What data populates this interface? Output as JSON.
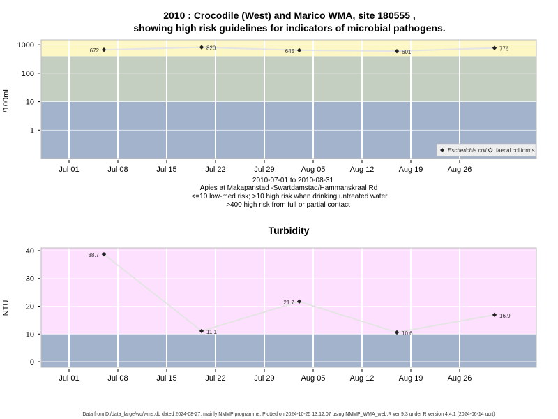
{
  "chart_data": [
    {
      "type": "line",
      "title_lines": [
        "2010 : Crocodile (West) and Marico WMA, site 180555 ,",
        "showing high risk guidelines for indicators of microbial pathogens."
      ],
      "ylabel": "/100mL",
      "yscale": "log",
      "ylim": [
        0.1,
        1500
      ],
      "yticks": [
        1,
        10,
        100,
        1000
      ],
      "ytick_labels": [
        "1",
        "10",
        "100",
        "1000"
      ],
      "xlim": [
        "2010-06-27",
        "2010-09-06"
      ],
      "xticks": [
        "2010-07-01",
        "2010-07-08",
        "2010-07-15",
        "2010-07-22",
        "2010-07-29",
        "2010-08-05",
        "2010-08-12",
        "2010-08-19",
        "2010-08-26"
      ],
      "xtick_labels": [
        "Jul 01",
        "Jul 08",
        "Jul 15",
        "Jul 22",
        "Jul 29",
        "Aug 05",
        "Aug 12",
        "Aug 19",
        "Aug 26"
      ],
      "bands": [
        {
          "from": 0.1,
          "to": 10,
          "color": "#a3b3cb"
        },
        {
          "from": 10,
          "to": 400,
          "color": "#c4cfc2"
        },
        {
          "from": 400,
          "to": 1500,
          "color": "#fdf6c5"
        }
      ],
      "series": [
        {
          "name": "Escherichia coli",
          "marker": "filled-diamond",
          "x": [
            "2010-07-06",
            "2010-07-20",
            "2010-08-03",
            "2010-08-17",
            "2010-08-31"
          ],
          "values": [
            672,
            820,
            645,
            601,
            776
          ],
          "labels": [
            "672",
            "820",
            "645",
            "601",
            "776"
          ]
        },
        {
          "name": "faecal coliforms",
          "marker": "open-diamond",
          "x": [],
          "values": []
        }
      ],
      "legend_position": "bottom-right",
      "notes": [
        "2010-07-01 to 2010-08-31",
        "Apies at Makapanstad -Swartdamstad/Hammanskraal Rd",
        "<=10 low-med risk; >10 high risk when drinking untreated water",
        ">400 high risk from full or partial contact"
      ],
      "grid": true
    },
    {
      "type": "line",
      "title": "Turbidity",
      "ylabel": "NTU",
      "ylim": [
        -2,
        41
      ],
      "yticks": [
        0,
        10,
        20,
        30,
        40
      ],
      "ytick_labels": [
        "0",
        "10",
        "20",
        "30",
        "40"
      ],
      "xlim": [
        "2010-06-27",
        "2010-09-06"
      ],
      "xticks": [
        "2010-07-01",
        "2010-07-08",
        "2010-07-15",
        "2010-07-22",
        "2010-07-29",
        "2010-08-05",
        "2010-08-12",
        "2010-08-19",
        "2010-08-26"
      ],
      "xtick_labels": [
        "Jul 01",
        "Jul 08",
        "Jul 15",
        "Jul 22",
        "Jul 29",
        "Aug 05",
        "Aug 12",
        "Aug 19",
        "Aug 26"
      ],
      "bands": [
        {
          "from": -2,
          "to": 10,
          "color": "#a3b3cb"
        },
        {
          "from": 10,
          "to": 41,
          "color": "#fde0fd"
        }
      ],
      "series": [
        {
          "name": "",
          "marker": "filled-diamond",
          "x": [
            "2010-07-06",
            "2010-07-20",
            "2010-08-03",
            "2010-08-17",
            "2010-08-31"
          ],
          "values": [
            38.7,
            11.1,
            21.7,
            10.6,
            16.9
          ],
          "labels": [
            "38.7",
            "11.1",
            "21.7",
            "10.6",
            "16.9"
          ]
        }
      ],
      "grid": true
    }
  ],
  "footer": "Data from D:/data_large/wq/wms.db dated 2024-08-27, mainly NMMP programme. Plotted on 2024-10-25 13:12:07 using NMMP_WMA_web.R ver 9.3 under R version 4.4.1 (2024-06-14 ucrt)"
}
